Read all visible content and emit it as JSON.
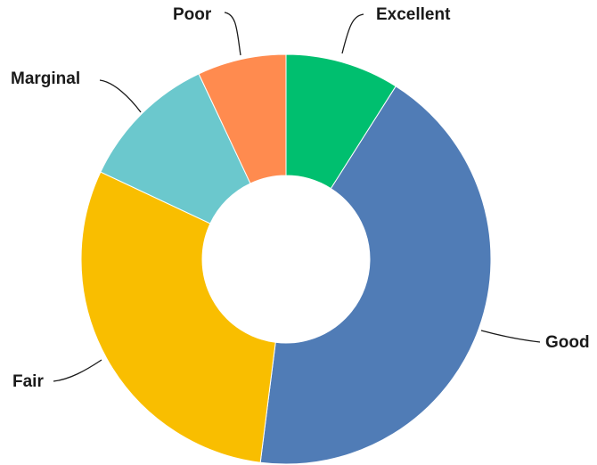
{
  "chart_data": {
    "type": "pie",
    "donut": true,
    "categories": [
      "Excellent",
      "Good",
      "Fair",
      "Marginal",
      "Poor"
    ],
    "values": [
      9,
      43,
      30,
      11,
      7
    ],
    "colors": {
      "Excellent": "#00BF6F",
      "Good": "#507CB6",
      "Fair": "#F9BE00",
      "Marginal": "#6BC8CD",
      "Poor": "#FF8B4F"
    },
    "start_angle": "12 o'clock",
    "direction": "clockwise",
    "legend": "none",
    "labels": "outside with leader lines"
  }
}
